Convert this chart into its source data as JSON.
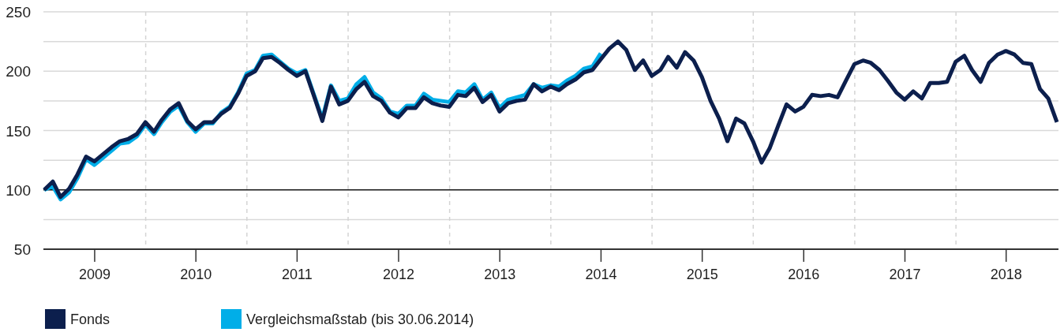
{
  "chart_data": {
    "type": "line",
    "x": [
      "2008-12-31",
      "2009-01-31",
      "2009-02-28",
      "2009-03-31",
      "2009-04-30",
      "2009-05-31",
      "2009-06-30",
      "2009-07-31",
      "2009-08-31",
      "2009-09-30",
      "2009-10-31",
      "2009-11-30",
      "2009-12-31",
      "2010-01-31",
      "2010-02-28",
      "2010-03-31",
      "2010-04-30",
      "2010-05-31",
      "2010-06-30",
      "2010-07-31",
      "2010-08-31",
      "2010-09-30",
      "2010-10-31",
      "2010-11-30",
      "2010-12-31",
      "2011-01-31",
      "2011-02-28",
      "2011-03-31",
      "2011-04-30",
      "2011-05-31",
      "2011-06-30",
      "2011-07-31",
      "2011-08-31",
      "2011-09-30",
      "2011-10-31",
      "2011-11-30",
      "2011-12-31",
      "2012-01-31",
      "2012-02-29",
      "2012-03-31",
      "2012-04-30",
      "2012-05-31",
      "2012-06-30",
      "2012-07-31",
      "2012-08-31",
      "2012-09-30",
      "2012-10-31",
      "2012-11-30",
      "2012-12-31",
      "2013-01-31",
      "2013-02-28",
      "2013-03-31",
      "2013-04-30",
      "2013-05-31",
      "2013-06-30",
      "2013-07-31",
      "2013-08-31",
      "2013-09-30",
      "2013-10-31",
      "2013-11-30",
      "2013-12-31",
      "2014-01-31",
      "2014-02-28",
      "2014-03-31",
      "2014-04-30",
      "2014-05-31",
      "2014-06-30",
      "2014-07-31",
      "2014-08-31",
      "2014-09-30",
      "2014-10-31",
      "2014-11-30",
      "2014-12-31",
      "2015-01-31",
      "2015-02-28",
      "2015-03-31",
      "2015-04-30",
      "2015-05-31",
      "2015-06-30",
      "2015-07-31",
      "2015-08-31",
      "2015-09-30",
      "2015-10-31",
      "2015-11-30",
      "2015-12-31",
      "2016-01-31",
      "2016-02-29",
      "2016-03-31",
      "2016-04-30",
      "2016-05-31",
      "2016-06-30",
      "2016-07-31",
      "2016-08-31",
      "2016-09-30",
      "2016-10-31",
      "2016-11-30",
      "2016-12-31",
      "2017-01-31",
      "2017-02-28",
      "2017-03-31",
      "2017-04-30",
      "2017-05-31",
      "2017-06-30",
      "2017-07-31",
      "2017-08-31",
      "2017-09-30",
      "2017-10-31",
      "2017-11-30",
      "2017-12-31",
      "2018-01-31",
      "2018-02-28",
      "2018-03-31",
      "2018-04-30",
      "2018-05-31",
      "2018-06-30",
      "2018-07-31",
      "2018-08-31",
      "2018-09-30",
      "2018-10-31",
      "2018-11-30",
      "2018-12-31"
    ],
    "series": [
      {
        "name": "Fonds",
        "color": "#0c1f4d",
        "values": [
          100,
          107,
          94,
          101,
          113,
          128,
          124,
          130,
          136,
          141,
          143,
          147,
          157,
          149,
          159,
          168,
          173,
          158,
          151,
          157,
          157,
          164,
          169,
          181,
          196,
          200,
          211,
          212,
          207,
          201,
          196,
          200,
          179,
          158,
          187,
          172,
          175,
          185,
          191,
          179,
          175,
          165,
          161,
          169,
          169,
          178,
          173,
          171,
          170,
          180,
          179,
          186,
          174,
          180,
          166,
          173,
          175,
          176,
          189,
          183,
          187,
          184,
          189,
          193,
          199,
          201,
          210,
          219,
          225,
          218,
          201,
          209,
          196,
          201,
          212,
          203,
          216,
          209,
          195,
          175,
          160,
          141,
          160,
          156,
          141,
          123,
          135,
          154,
          172,
          166,
          170,
          180,
          179,
          180,
          178,
          192,
          206,
          209,
          207,
          201,
          192,
          182,
          176,
          183,
          177,
          190,
          190,
          191,
          208,
          213,
          201,
          191,
          207,
          214,
          217,
          214,
          207,
          206,
          185,
          177,
          157
        ]
      },
      {
        "name": "Vergleichsmaßstab (bis 30.06.2014)",
        "color": "#00aee8",
        "values": [
          100,
          103,
          92,
          98,
          110,
          126,
          121,
          127,
          133,
          139,
          140,
          145,
          155,
          147,
          157,
          166,
          171,
          157,
          149,
          156,
          156,
          165,
          170,
          182,
          198,
          201,
          213,
          214,
          208,
          202,
          198,
          201,
          180,
          160,
          188,
          175,
          177,
          189,
          195,
          182,
          177,
          166,
          164,
          171,
          171,
          181,
          176,
          175,
          174,
          183,
          182,
          189,
          176,
          182,
          169,
          176,
          178,
          180,
          189,
          186,
          188,
          187,
          192,
          196,
          202,
          204,
          215,
          null,
          null,
          null,
          null,
          null,
          null,
          null,
          null,
          null,
          null,
          null,
          null,
          null,
          null,
          null,
          null,
          null,
          null,
          null,
          null,
          null,
          null,
          null,
          null,
          null,
          null,
          null,
          null,
          null,
          null,
          null,
          null,
          null,
          null,
          null,
          null,
          null,
          null,
          null,
          null,
          null,
          null,
          null,
          null,
          null,
          null,
          null,
          null,
          null,
          null,
          null,
          null,
          null,
          null
        ]
      }
    ],
    "xlim": [
      "2008-12-31",
      "2018-12-31"
    ],
    "xticks": [
      {
        "value": "2009-07-01",
        "label": "2009"
      },
      {
        "value": "2010-07-01",
        "label": "2010"
      },
      {
        "value": "2011-07-01",
        "label": "2011"
      },
      {
        "value": "2012-07-01",
        "label": "2012"
      },
      {
        "value": "2013-07-01",
        "label": "2013"
      },
      {
        "value": "2014-07-01",
        "label": "2014"
      },
      {
        "value": "2015-07-01",
        "label": "2015"
      },
      {
        "value": "2016-07-01",
        "label": "2016"
      },
      {
        "value": "2017-07-01",
        "label": "2017"
      },
      {
        "value": "2018-07-01",
        "label": "2018"
      }
    ],
    "ylim": [
      50,
      250
    ],
    "yticks": [
      50,
      {
        "value": 75,
        "label": null
      },
      100,
      {
        "value": 125,
        "label": null
      },
      150,
      {
        "value": 175,
        "label": null
      },
      200,
      {
        "value": 225,
        "label": null
      },
      250
    ],
    "grid": "y",
    "ref_lines": [
      {
        "axis": "y",
        "value": 100,
        "color": "#1a1a1a"
      },
      {
        "axis": "x",
        "value": "2010-01-01",
        "color": "#d4d4d4",
        "line_style": "dashed"
      },
      {
        "axis": "x",
        "value": "2011-01-01",
        "color": "#d4d4d4",
        "line_style": "dashed"
      },
      {
        "axis": "x",
        "value": "2012-01-01",
        "color": "#d4d4d4",
        "line_style": "dashed"
      },
      {
        "axis": "x",
        "value": "2013-01-01",
        "color": "#d4d4d4",
        "line_style": "dashed"
      },
      {
        "axis": "x",
        "value": "2014-01-01",
        "color": "#d4d4d4",
        "line_style": "dashed"
      },
      {
        "axis": "x",
        "value": "2015-01-01",
        "color": "#d4d4d4",
        "line_style": "dashed"
      },
      {
        "axis": "x",
        "value": "2016-01-01",
        "color": "#d4d4d4",
        "line_style": "dashed"
      },
      {
        "axis": "x",
        "value": "2017-01-01",
        "color": "#d4d4d4",
        "line_style": "dashed"
      },
      {
        "axis": "x",
        "value": "2018-01-01",
        "color": "#d4d4d4",
        "line_style": "dashed"
      }
    ],
    "legend": "bottom left"
  }
}
